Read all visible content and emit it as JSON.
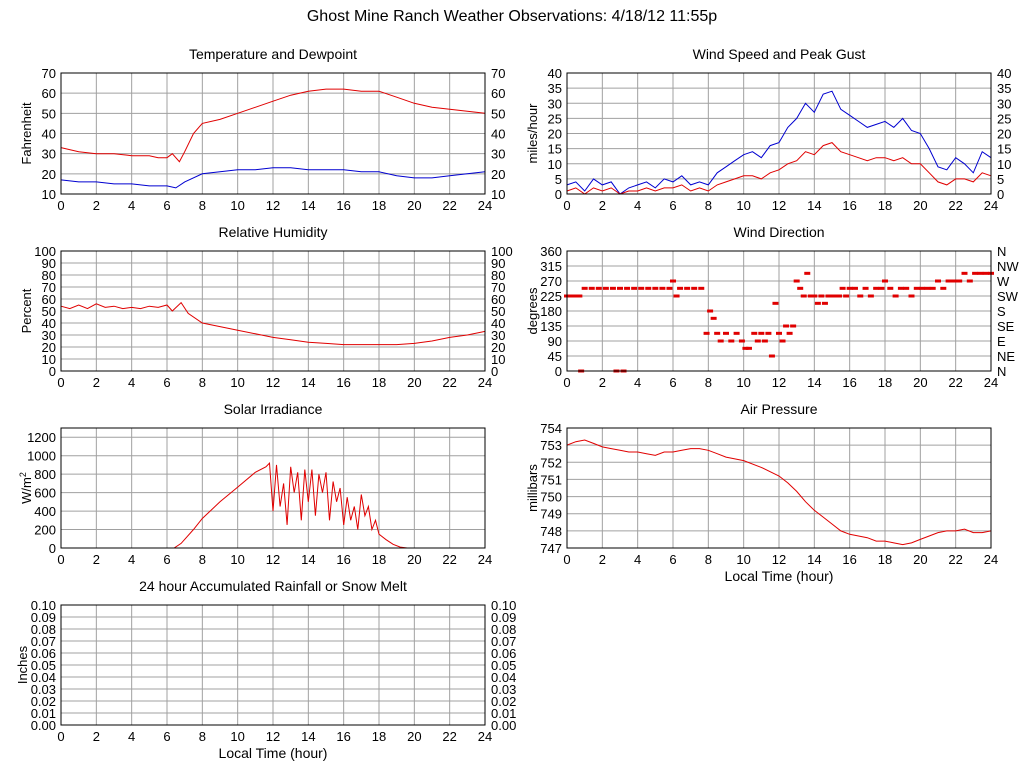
{
  "page_title": "Ghost Mine Ranch Weather Observations: 4/18/12 11:55p",
  "colors": {
    "red": "#e00000",
    "blue": "#0000d0",
    "grid": "#a0a0a0"
  },
  "chart_data": [
    {
      "id": "temperature",
      "type": "line",
      "title": "Temperature and Dewpoint",
      "ylabel": "Fahrenheit",
      "xlabel": "",
      "xlim": [
        0,
        24
      ],
      "ylim": [
        10,
        70
      ],
      "xticks": [
        0,
        2,
        4,
        6,
        8,
        10,
        12,
        14,
        16,
        18,
        20,
        22,
        24
      ],
      "yticks": [
        10,
        20,
        30,
        40,
        50,
        60,
        70
      ],
      "right_ticks": [
        "10",
        "20",
        "30",
        "40",
        "50",
        "60",
        "70"
      ],
      "grid": true,
      "series": [
        {
          "color": "red",
          "x": [
            0,
            1,
            2,
            3,
            4,
            5,
            5.5,
            6,
            6.3,
            6.7,
            7,
            7.5,
            8,
            9,
            10,
            11,
            12,
            13,
            14,
            15,
            16,
            17,
            18,
            19,
            20,
            21,
            22,
            23,
            24
          ],
          "y": [
            33,
            31,
            30,
            30,
            29,
            29,
            28,
            28,
            30,
            26,
            31,
            40,
            45,
            47,
            50,
            53,
            56,
            59,
            61,
            62,
            62,
            61,
            61,
            58,
            55,
            53,
            52,
            51,
            50
          ]
        },
        {
          "color": "blue",
          "x": [
            0,
            1,
            2,
            3,
            4,
            5,
            5.5,
            6,
            6.5,
            7,
            8,
            9,
            10,
            11,
            12,
            13,
            14,
            15,
            16,
            17,
            18,
            19,
            20,
            21,
            22,
            23,
            24
          ],
          "y": [
            17,
            16,
            16,
            15,
            15,
            14,
            14,
            14,
            13,
            16,
            20,
            21,
            22,
            22,
            23,
            23,
            22,
            22,
            22,
            21,
            21,
            19,
            18,
            18,
            19,
            20,
            21
          ]
        }
      ]
    },
    {
      "id": "wind",
      "type": "line",
      "title": "Wind Speed and Peak Gust",
      "ylabel": "miles/hour",
      "xlabel": "",
      "xlim": [
        0,
        24
      ],
      "ylim": [
        0,
        40
      ],
      "xticks": [
        0,
        2,
        4,
        6,
        8,
        10,
        12,
        14,
        16,
        18,
        20,
        22,
        24
      ],
      "yticks": [
        0,
        5,
        10,
        15,
        20,
        25,
        30,
        35,
        40
      ],
      "right_ticks": [
        "0",
        "5",
        "10",
        "15",
        "20",
        "25",
        "30",
        "35",
        "40"
      ],
      "grid": true,
      "series": [
        {
          "color": "blue",
          "x": [
            0,
            0.5,
            1,
            1.5,
            2,
            2.5,
            3,
            3.5,
            4,
            4.5,
            5,
            5.5,
            6,
            6.5,
            7,
            7.5,
            8,
            8.5,
            9,
            9.5,
            10,
            10.5,
            11,
            11.5,
            12,
            12.5,
            13,
            13.5,
            14,
            14.5,
            15,
            15.5,
            16,
            16.5,
            17,
            17.5,
            18,
            18.5,
            19,
            19.5,
            20,
            20.5,
            21,
            21.5,
            22,
            22.5,
            23,
            23.5,
            24
          ],
          "y": [
            3,
            4,
            1,
            5,
            3,
            4,
            0,
            2,
            3,
            4,
            2,
            5,
            4,
            6,
            3,
            4,
            3,
            7,
            9,
            11,
            13,
            14,
            12,
            16,
            17,
            22,
            25,
            30,
            27,
            33,
            34,
            28,
            26,
            24,
            22,
            23,
            24,
            22,
            25,
            21,
            20,
            15,
            9,
            8,
            12,
            10,
            7,
            14,
            12
          ]
        },
        {
          "color": "red",
          "x": [
            0,
            0.5,
            1,
            1.5,
            2,
            2.5,
            3,
            3.5,
            4,
            4.5,
            5,
            5.5,
            6,
            6.5,
            7,
            7.5,
            8,
            8.5,
            9,
            9.5,
            10,
            10.5,
            11,
            11.5,
            12,
            12.5,
            13,
            13.5,
            14,
            14.5,
            15,
            15.5,
            16,
            16.5,
            17,
            17.5,
            18,
            18.5,
            19,
            19.5,
            20,
            20.5,
            21,
            21.5,
            22,
            22.5,
            23,
            23.5,
            24
          ],
          "y": [
            1,
            2,
            0,
            2,
            1,
            2,
            0,
            1,
            1,
            2,
            1,
            2,
            2,
            3,
            1,
            2,
            1,
            3,
            4,
            5,
            6,
            6,
            5,
            7,
            8,
            10,
            11,
            14,
            13,
            16,
            17,
            14,
            13,
            12,
            11,
            12,
            12,
            11,
            12,
            10,
            10,
            7,
            4,
            3,
            5,
            5,
            4,
            7,
            6
          ]
        }
      ]
    },
    {
      "id": "humidity",
      "type": "line",
      "title": "Relative Humidity",
      "ylabel": "Percent",
      "xlabel": "",
      "xlim": [
        0,
        24
      ],
      "ylim": [
        0,
        100
      ],
      "xticks": [
        0,
        2,
        4,
        6,
        8,
        10,
        12,
        14,
        16,
        18,
        20,
        22,
        24
      ],
      "yticks": [
        0,
        10,
        20,
        30,
        40,
        50,
        60,
        70,
        80,
        90,
        100
      ],
      "right_ticks": [
        "0",
        "10",
        "20",
        "30",
        "40",
        "50",
        "60",
        "70",
        "80",
        "90",
        "100"
      ],
      "grid": true,
      "series": [
        {
          "color": "red",
          "x": [
            0,
            0.5,
            1,
            1.5,
            2,
            2.5,
            3,
            3.5,
            4,
            4.5,
            5,
            5.5,
            6,
            6.3,
            6.8,
            7.2,
            8,
            9,
            10,
            11,
            12,
            13,
            14,
            15,
            16,
            17,
            18,
            19,
            20,
            21,
            22,
            23,
            24
          ],
          "y": [
            54,
            52,
            55,
            52,
            56,
            53,
            54,
            52,
            53,
            52,
            54,
            53,
            55,
            50,
            57,
            48,
            40,
            37,
            34,
            31,
            28,
            26,
            24,
            23,
            22,
            22,
            22,
            22,
            23,
            25,
            28,
            30,
            33
          ]
        }
      ]
    },
    {
      "id": "direction",
      "type": "scatter",
      "title": "Wind Direction",
      "ylabel": "degrees",
      "xlabel": "",
      "xlim": [
        0,
        24
      ],
      "ylim": [
        0,
        360
      ],
      "xticks": [
        0,
        2,
        4,
        6,
        8,
        10,
        12,
        14,
        16,
        18,
        20,
        22,
        24
      ],
      "yticks": [
        0,
        45,
        90,
        135,
        180,
        225,
        270,
        315,
        360
      ],
      "right_ticks": [
        "N",
        "NE",
        "E",
        "SE",
        "S",
        "SW",
        "W",
        "NW",
        "N"
      ],
      "grid": true,
      "series": [
        {
          "color": "red",
          "x": [
            0,
            0.2,
            0.4,
            0.6,
            0.8,
            0.7,
            1,
            1.4,
            1.8,
            2.2,
            2.6,
            2.8,
            3,
            3.4,
            3.2,
            3.8,
            4.2,
            4.6,
            5,
            5.4,
            5.8,
            6,
            6.2,
            6.4,
            6.8,
            7.2,
            7.6,
            7.9,
            8.1,
            8.3,
            8.5,
            8.7,
            9,
            9.3,
            9.6,
            9.9,
            10.1,
            10.3,
            10.6,
            10.8,
            11,
            11.2,
            11.4,
            11.6,
            11.8,
            12,
            12.2,
            12.4,
            12.6,
            12.8,
            13,
            13.2,
            13.4,
            13.6,
            13.8,
            14,
            14.2,
            14.4,
            14.6,
            14.8,
            15,
            15.2,
            15.4,
            15.6,
            15.8,
            16,
            16.3,
            16.6,
            16.9,
            17.2,
            17.5,
            17.8,
            18,
            18.3,
            18.6,
            18.9,
            19.2,
            19.5,
            19.8,
            20.1,
            20.4,
            20.7,
            21,
            21.3,
            21.6,
            21.9,
            22.2,
            22.5,
            22.8,
            23.1,
            23.4,
            23.7,
            24
          ],
          "y": [
            225,
            225,
            225,
            225,
            0,
            225,
            248,
            248,
            248,
            248,
            248,
            0,
            248,
            248,
            0,
            248,
            248,
            248,
            248,
            248,
            248,
            270,
            225,
            248,
            248,
            248,
            248,
            113,
            180,
            158,
            113,
            90,
            113,
            90,
            113,
            90,
            68,
            68,
            113,
            90,
            113,
            90,
            113,
            45,
            203,
            113,
            90,
            135,
            113,
            135,
            270,
            248,
            225,
            293,
            225,
            225,
            203,
            225,
            203,
            225,
            225,
            225,
            225,
            248,
            225,
            248,
            248,
            225,
            248,
            225,
            248,
            248,
            270,
            248,
            225,
            248,
            248,
            225,
            248,
            248,
            248,
            248,
            270,
            248,
            270,
            270,
            270,
            293,
            270,
            293,
            293,
            293,
            293
          ]
        }
      ]
    },
    {
      "id": "solar",
      "type": "line",
      "title": "Solar Irradiance",
      "ylabel": "W/m",
      "ylabel_sup": "2",
      "xlabel": "",
      "xlim": [
        0,
        24
      ],
      "ylim": [
        0,
        1300
      ],
      "xticks": [
        0,
        2,
        4,
        6,
        8,
        10,
        12,
        14,
        16,
        18,
        20,
        22,
        24
      ],
      "yticks": [
        0,
        200,
        400,
        600,
        800,
        1000,
        1200
      ],
      "right_ticks": [],
      "grid": true,
      "series": [
        {
          "color": "red",
          "x": [
            0,
            6.4,
            6.8,
            7.5,
            8,
            9,
            10,
            11,
            11.6,
            11.8,
            12,
            12.2,
            12.4,
            12.6,
            12.8,
            13,
            13.2,
            13.4,
            13.6,
            13.8,
            14,
            14.2,
            14.4,
            14.6,
            14.8,
            15,
            15.2,
            15.4,
            15.6,
            15.8,
            16,
            16.2,
            16.4,
            16.6,
            16.8,
            17,
            17.2,
            17.4,
            17.6,
            17.8,
            18,
            18.4,
            18.8,
            19.2,
            19.6,
            20,
            24
          ],
          "y": [
            0,
            0,
            50,
            200,
            320,
            500,
            660,
            820,
            880,
            920,
            400,
            900,
            450,
            700,
            250,
            880,
            600,
            820,
            300,
            850,
            500,
            850,
            350,
            800,
            600,
            820,
            300,
            720,
            500,
            650,
            250,
            550,
            300,
            450,
            200,
            580,
            350,
            450,
            200,
            300,
            150,
            90,
            40,
            10,
            0,
            0,
            0
          ]
        }
      ]
    },
    {
      "id": "pressure",
      "type": "line",
      "title": "Air Pressure",
      "ylabel": "millibars",
      "xlabel": "Local Time (hour)",
      "xlim": [
        0,
        24
      ],
      "ylim": [
        747,
        754
      ],
      "xticks": [
        0,
        2,
        4,
        6,
        8,
        10,
        12,
        14,
        16,
        18,
        20,
        22,
        24
      ],
      "yticks": [
        747,
        748,
        749,
        750,
        751,
        752,
        753,
        754
      ],
      "right_ticks": [],
      "grid": true,
      "series": [
        {
          "color": "red",
          "x": [
            0,
            0.5,
            1,
            1.5,
            2,
            2.5,
            3,
            3.5,
            4,
            4.5,
            5,
            5.5,
            6,
            6.5,
            7,
            7.5,
            8,
            8.5,
            9,
            10,
            11,
            12,
            12.5,
            13,
            13.5,
            14,
            14.5,
            15,
            15.5,
            16,
            16.5,
            17,
            17.5,
            18,
            18.5,
            19,
            19.5,
            20,
            20.5,
            21,
            21.5,
            22,
            22.5,
            23,
            23.5,
            24
          ],
          "y": [
            753.0,
            753.2,
            753.3,
            753.1,
            752.9,
            752.8,
            752.7,
            752.6,
            752.6,
            752.5,
            752.4,
            752.6,
            752.6,
            752.7,
            752.8,
            752.8,
            752.7,
            752.5,
            752.3,
            752.1,
            751.7,
            751.2,
            750.8,
            750.3,
            749.7,
            749.2,
            748.8,
            748.4,
            748.0,
            747.8,
            747.7,
            747.6,
            747.4,
            747.4,
            747.3,
            747.2,
            747.3,
            747.5,
            747.7,
            747.9,
            748.0,
            748.0,
            748.1,
            747.9,
            747.9,
            748.0
          ]
        }
      ]
    },
    {
      "id": "rain",
      "type": "line",
      "title": "24 hour Accumulated Rainfall or Snow Melt",
      "ylabel": "Inches",
      "xlabel": "Local Time (hour)",
      "xlim": [
        0,
        24
      ],
      "ylim": [
        0,
        0.1
      ],
      "xticks": [
        0,
        2,
        4,
        6,
        8,
        10,
        12,
        14,
        16,
        18,
        20,
        22,
        24
      ],
      "yticks": [
        0,
        0.01,
        0.02,
        0.03,
        0.04,
        0.05,
        0.06,
        0.07,
        0.08,
        0.09,
        0.1
      ],
      "ytick_labels": [
        "0.00",
        "0.01",
        "0.02",
        "0.03",
        "0.04",
        "0.05",
        "0.06",
        "0.07",
        "0.08",
        "0.09",
        "0.10"
      ],
      "right_ticks": [
        "0.00",
        "0.01",
        "0.02",
        "0.03",
        "0.04",
        "0.05",
        "0.06",
        "0.07",
        "0.08",
        "0.09",
        "0.10"
      ],
      "grid": true,
      "series": [
        {
          "color": "red",
          "x": [
            0,
            24
          ],
          "y": [
            0,
            0
          ]
        }
      ]
    }
  ]
}
